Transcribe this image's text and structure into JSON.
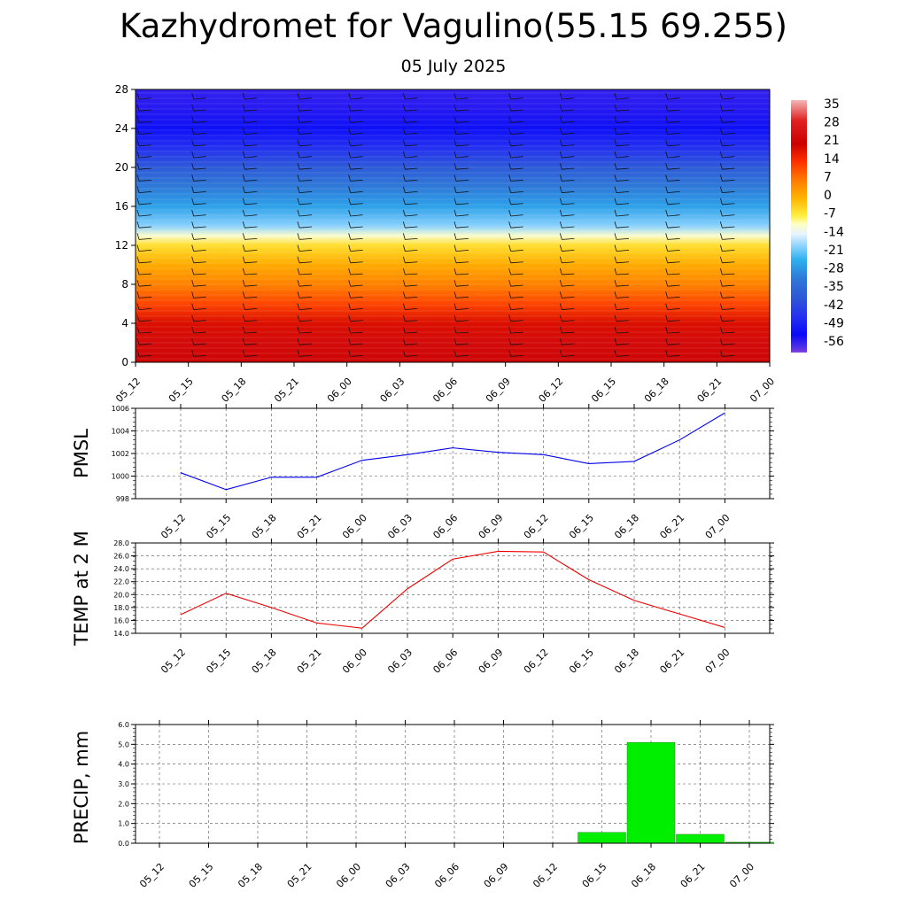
{
  "header": {
    "title": "Kazhydromet for Vagulino(55.15 69.255)",
    "subtitle": "05 July 2025"
  },
  "chart_data": [
    {
      "type": "heatmap",
      "description_of_axes": "time vs level",
      "x_labels": [
        "05_12",
        "05_15",
        "05_18",
        "05_21",
        "06_00",
        "06_03",
        "06_06",
        "06_09",
        "06_12",
        "06_15",
        "06_18",
        "06_21",
        "07_00"
      ],
      "y_ticks": [
        0,
        4,
        8,
        12,
        16,
        20,
        24,
        28
      ],
      "ylim": [
        0,
        28
      ],
      "colorbar_labels": [
        "35",
        "28",
        "21",
        "14",
        "7",
        "0",
        "-7",
        "-14",
        "-21",
        "-28",
        "-35",
        "-42",
        "-49",
        "-56"
      ],
      "colorbar_range": [
        -60,
        38
      ],
      "colorbar_stops": [
        {
          "v": 38,
          "color": "#f4b7b7"
        },
        {
          "v": 30,
          "color": "#e02020"
        },
        {
          "v": 21,
          "color": "#cc0000"
        },
        {
          "v": 14,
          "color": "#ff3000"
        },
        {
          "v": 7,
          "color": "#ff7a00"
        },
        {
          "v": 0,
          "color": "#ffb300"
        },
        {
          "v": -7,
          "color": "#ffef40"
        },
        {
          "v": -10,
          "color": "#ffffc0"
        },
        {
          "v": -14,
          "color": "#e8f4ff"
        },
        {
          "v": -18,
          "color": "#9ad8ff"
        },
        {
          "v": -24,
          "color": "#2eb0f0"
        },
        {
          "v": -31,
          "color": "#2e7ad8"
        },
        {
          "v": -39,
          "color": "#2e56d8"
        },
        {
          "v": -46,
          "color": "#2431f0"
        },
        {
          "v": -53,
          "color": "#0a0af8"
        },
        {
          "v": -58,
          "color": "#5030e8"
        },
        {
          "v": -60,
          "color": "#8040e0"
        }
      ],
      "level_profile": [
        {
          "level": 0,
          "value": 22
        },
        {
          "level": 2,
          "value": 24
        },
        {
          "level": 4,
          "value": 19
        },
        {
          "level": 6,
          "value": 12
        },
        {
          "level": 8,
          "value": 6
        },
        {
          "level": 10,
          "value": 1
        },
        {
          "level": 12,
          "value": -5
        },
        {
          "level": 13,
          "value": -11
        },
        {
          "level": 14,
          "value": -19
        },
        {
          "level": 16,
          "value": -26
        },
        {
          "level": 18,
          "value": -31
        },
        {
          "level": 20,
          "value": -38
        },
        {
          "level": 22,
          "value": -46
        },
        {
          "level": 24,
          "value": -52
        },
        {
          "level": 26,
          "value": -55
        },
        {
          "level": 28,
          "value": -56
        }
      ]
    },
    {
      "type": "line",
      "ylabel": "PMSL",
      "x_labels": [
        "05_12",
        "05_15",
        "05_18",
        "05_21",
        "06_00",
        "06_03",
        "06_06",
        "06_09",
        "06_12",
        "06_15",
        "06_18",
        "06_21",
        "07_00"
      ],
      "ylim": [
        998,
        1006
      ],
      "y_ticks": [
        998,
        1000,
        1002,
        1004,
        1006
      ],
      "y_tick_labels": [
        "998",
        "1000",
        "1002",
        "1004",
        "1006"
      ],
      "series": [
        {
          "color": "#0000ee",
          "values": [
            1000.3,
            998.8,
            999.9,
            999.9,
            1001.4,
            1001.9,
            1002.5,
            1002.1,
            1001.9,
            1001.1,
            1001.3,
            1003.2,
            1005.6
          ]
        }
      ],
      "grid": true
    },
    {
      "type": "line",
      "ylabel": "TEMP at 2 M",
      "x_labels": [
        "05_12",
        "05_15",
        "05_18",
        "05_21",
        "06_00",
        "06_03",
        "06_06",
        "06_09",
        "06_12",
        "06_15",
        "06_18",
        "06_21",
        "07_00"
      ],
      "ylim": [
        14,
        28
      ],
      "y_ticks": [
        14,
        16,
        18,
        20,
        22,
        24,
        26,
        28
      ],
      "y_tick_labels": [
        "14.0",
        "16.0",
        "18.0",
        "20.0",
        "22.0",
        "24.0",
        "26.0",
        "28.0"
      ],
      "series": [
        {
          "color": "#ee0000",
          "values": [
            16.9,
            20.2,
            18.0,
            15.6,
            14.8,
            20.9,
            25.5,
            26.7,
            26.6,
            22.3,
            19.1,
            17.0,
            14.9
          ]
        }
      ],
      "grid": true
    },
    {
      "type": "bar",
      "ylabel": "PRECIP, mm",
      "x_labels": [
        "05_12",
        "05_15",
        "05_18",
        "05_21",
        "06_00",
        "06_03",
        "06_06",
        "06_09",
        "06_12",
        "06_15",
        "06_18",
        "06_21",
        "07_00"
      ],
      "ylim": [
        0,
        6
      ],
      "y_ticks": [
        0,
        1,
        2,
        3,
        4,
        5,
        6
      ],
      "y_tick_labels": [
        "0.0",
        "1.0",
        "2.0",
        "3.0",
        "4.0",
        "5.0",
        "6.0"
      ],
      "bar_color": "#00ee00",
      "values": [
        0,
        0,
        0,
        0,
        0,
        0,
        0,
        0,
        0,
        0.55,
        5.1,
        0.45,
        0.05
      ],
      "grid": true
    }
  ]
}
